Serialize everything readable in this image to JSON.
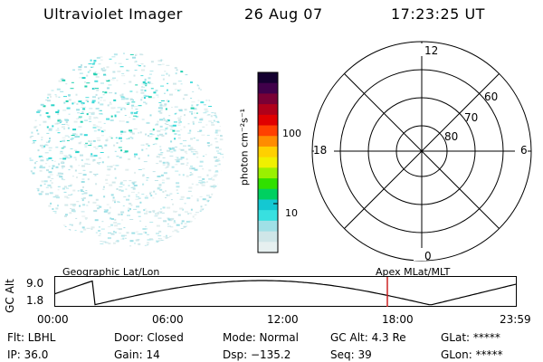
{
  "header": {
    "title": "Ultraviolet Imager",
    "date": "26 Aug 07",
    "time": "17:23:25 UT"
  },
  "colorbar": {
    "unit_label": "photon cm⁻²s⁻¹",
    "ticks": [
      {
        "label": "100",
        "value": 100
      },
      {
        "label": "10",
        "value": 10
      }
    ],
    "colors": [
      "#e6f0f0",
      "#cfe6e8",
      "#9fe0e6",
      "#38e0e0",
      "#14c8d2",
      "#00d060",
      "#30e000",
      "#9af000",
      "#f0f000",
      "#ffd000",
      "#ff8c00",
      "#ff4000",
      "#e00000",
      "#b0001a",
      "#7a0035",
      "#40004a",
      "#150030"
    ]
  },
  "polar": {
    "labels": {
      "top": "12",
      "bottom": "0",
      "left": "18",
      "right": "6"
    },
    "rings": [
      "60",
      "70",
      "80"
    ]
  },
  "timeline": {
    "left_label": "Geographic Lat/Lon",
    "right_label": "Apex MLat/MLT",
    "axis_label": "GC Alt",
    "y_ticks": [
      "9.0",
      "1.8"
    ],
    "x_ticks": [
      "00:00",
      "06:00",
      "12:00",
      "18:00",
      "23:59"
    ],
    "marker_color": "#cc2222"
  },
  "info": {
    "row1": {
      "filter": "Flt: LBHL",
      "door": "Door: Closed",
      "mode": "Mode: Normal",
      "gc_alt": "GC Alt: 4.3 Re",
      "glat": "GLat: *****"
    },
    "row2": {
      "ip": "IP: 36.0",
      "gain": "Gain: 14",
      "dsp": "Dsp: −135.2",
      "seq": "Seq: 39",
      "glon": "GLon: *****"
    }
  }
}
